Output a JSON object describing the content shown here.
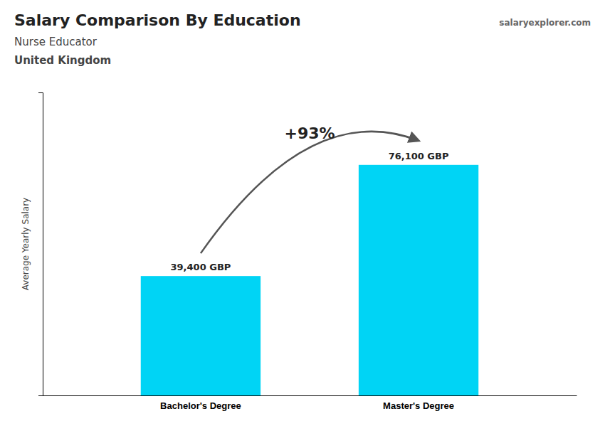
{
  "chart_data": {
    "type": "bar",
    "title": "Salary Comparison By Education",
    "subtitle": "Nurse Educator",
    "annotations": [
      "United Kingdom",
      "+93%",
      "salaryexplorer.com"
    ],
    "ylabel": "Average Yearly Salary",
    "categories": [
      "Bachelor's Degree",
      "Master's Degree"
    ],
    "values": [
      39400,
      76100
    ],
    "value_labels": [
      "39,400 GBP",
      "76,100 GBP"
    ],
    "data_labels": true,
    "color": "#00d4f5",
    "ylim": [
      0,
      100000
    ],
    "tick_labels": "x",
    "grid": false
  }
}
